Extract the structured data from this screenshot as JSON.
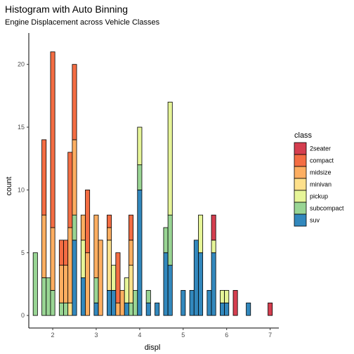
{
  "chart_data": {
    "type": "bar",
    "subtype": "stacked-histogram",
    "title": "Histogram with Auto Binning",
    "subtitle": "Engine Displacement across Vehicle Classes",
    "xlabel": "displ",
    "ylabel": "count",
    "xlim": [
      1.45,
      7.2
    ],
    "ylim": [
      -1.0,
      22.5
    ],
    "x_ticks": [
      2,
      3,
      4,
      5,
      6,
      7
    ],
    "y_ticks": [
      0,
      5,
      10,
      15,
      20
    ],
    "bin_width": 0.1,
    "grid": false,
    "legend": {
      "title": "class",
      "position": "right"
    },
    "classes": [
      "2seater",
      "compact",
      "midsize",
      "minivan",
      "pickup",
      "subcompact",
      "suv"
    ],
    "colors": {
      "2seater": "#D53E4F",
      "compact": "#F46D43",
      "midsize": "#FDAE61",
      "minivan": "#FEE08B",
      "pickup": "#E6F598",
      "subcompact": "#99D594",
      "suv": "#3288BD"
    },
    "bins": [
      {
        "x": 1.6,
        "counts": {
          "subcompact": 5
        }
      },
      {
        "x": 1.8,
        "counts": {
          "subcompact": 3,
          "midsize": 5,
          "compact": 6
        }
      },
      {
        "x": 1.9,
        "counts": {
          "subcompact": 3
        }
      },
      {
        "x": 2.0,
        "counts": {
          "subcompact": 2,
          "midsize": 5,
          "compact": 14
        }
      },
      {
        "x": 2.2,
        "counts": {
          "subcompact": 1,
          "midsize": 3,
          "compact": 2
        }
      },
      {
        "x": 2.3,
        "counts": {
          "subcompact": 1,
          "midsize": 3,
          "compact": 2
        }
      },
      {
        "x": 2.4,
        "counts": {
          "minivan": 1,
          "midsize": 6,
          "compact": 6
        }
      },
      {
        "x": 2.5,
        "counts": {
          "suv": 6,
          "subcompact": 2,
          "midsize": 6,
          "compact": 6
        }
      },
      {
        "x": 2.7,
        "counts": {
          "suv": 3,
          "pickup": 3,
          "midsize": 2
        }
      },
      {
        "x": 2.8,
        "counts": {
          "midsize": 5,
          "compact": 5
        }
      },
      {
        "x": 3.0,
        "counts": {
          "suv": 1,
          "subcompact": 2,
          "midsize": 5
        }
      },
      {
        "x": 3.1,
        "counts": {
          "midsize": 6
        }
      },
      {
        "x": 3.3,
        "counts": {
          "suv": 2,
          "minivan": 4,
          "midsize": 1,
          "compact": 1
        }
      },
      {
        "x": 3.4,
        "counts": {
          "suv": 2,
          "pickup": 2
        }
      },
      {
        "x": 3.5,
        "counts": {
          "midsize": 1,
          "compact": 4
        }
      },
      {
        "x": 3.6,
        "counts": {
          "midsize": 2
        }
      },
      {
        "x": 3.7,
        "counts": {
          "suv": 1,
          "pickup": 2
        }
      },
      {
        "x": 3.8,
        "counts": {
          "subcompact": 1,
          "midsize": 2,
          "minivan": 3,
          "compact": 2
        }
      },
      {
        "x": 3.9,
        "counts": {
          "subcompact": 2
        }
      },
      {
        "x": 4.0,
        "counts": {
          "suv": 10,
          "subcompact": 2,
          "pickup": 3
        }
      },
      {
        "x": 4.2,
        "counts": {
          "suv": 1,
          "subcompact": 1
        }
      },
      {
        "x": 4.4,
        "counts": {
          "suv": 1
        }
      },
      {
        "x": 4.6,
        "counts": {
          "suv": 5,
          "subcompact": 2
        }
      },
      {
        "x": 4.7,
        "counts": {
          "suv": 4,
          "subcompact": 4,
          "pickup": 9
        }
      },
      {
        "x": 5.0,
        "counts": {
          "suv": 2
        }
      },
      {
        "x": 5.2,
        "counts": {
          "suv": 2
        }
      },
      {
        "x": 5.3,
        "counts": {
          "suv": 6
        }
      },
      {
        "x": 5.4,
        "counts": {
          "suv": 5,
          "pickup": 3
        }
      },
      {
        "x": 5.6,
        "counts": {
          "suv": 2
        }
      },
      {
        "x": 5.7,
        "counts": {
          "suv": 5,
          "pickup": 1,
          "2seater": 2
        }
      },
      {
        "x": 5.9,
        "counts": {
          "suv": 1,
          "pickup": 1
        }
      },
      {
        "x": 6.0,
        "counts": {
          "suv": 1,
          "pickup": 1
        }
      },
      {
        "x": 6.2,
        "counts": {
          "2seater": 2
        }
      },
      {
        "x": 6.5,
        "counts": {
          "suv": 1
        }
      },
      {
        "x": 7.0,
        "counts": {
          "2seater": 1
        }
      }
    ]
  }
}
